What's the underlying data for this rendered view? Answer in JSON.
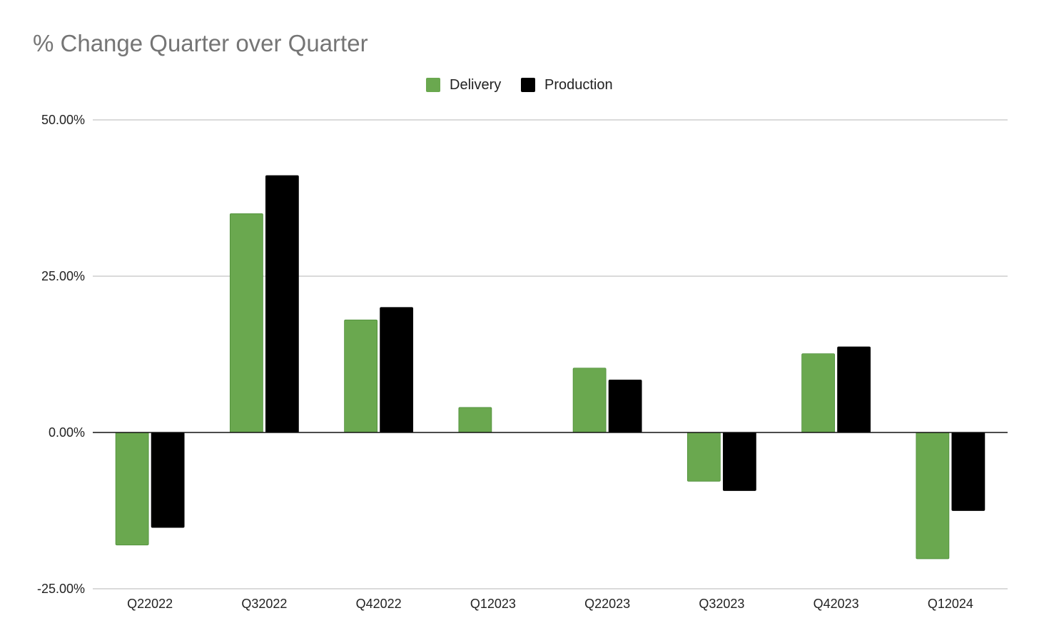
{
  "chart_data": {
    "type": "bar",
    "title": "% Change Quarter over Quarter",
    "xlabel": "",
    "ylabel": "",
    "categories": [
      "Q22022",
      "Q32022",
      "Q42022",
      "Q12023",
      "Q22023",
      "Q32023",
      "Q42023",
      "Q12024"
    ],
    "series": [
      {
        "name": "Delivery",
        "color": "#6aa84f",
        "values": [
          -18.0,
          35.0,
          18.0,
          4.0,
          10.3,
          -7.8,
          12.6,
          -20.2
        ]
      },
      {
        "name": "Production",
        "color": "#000000",
        "values": [
          -15.2,
          41.1,
          20.0,
          0.0,
          8.4,
          -9.3,
          13.7,
          -12.5
        ]
      }
    ],
    "ylim": [
      -25,
      50
    ],
    "yticks": [
      50,
      25,
      0,
      -25
    ],
    "ytick_labels": [
      "50.00%",
      "25.00%",
      "0.00%",
      "-25.00%"
    ],
    "grid": true,
    "legend_position": "top-center"
  }
}
